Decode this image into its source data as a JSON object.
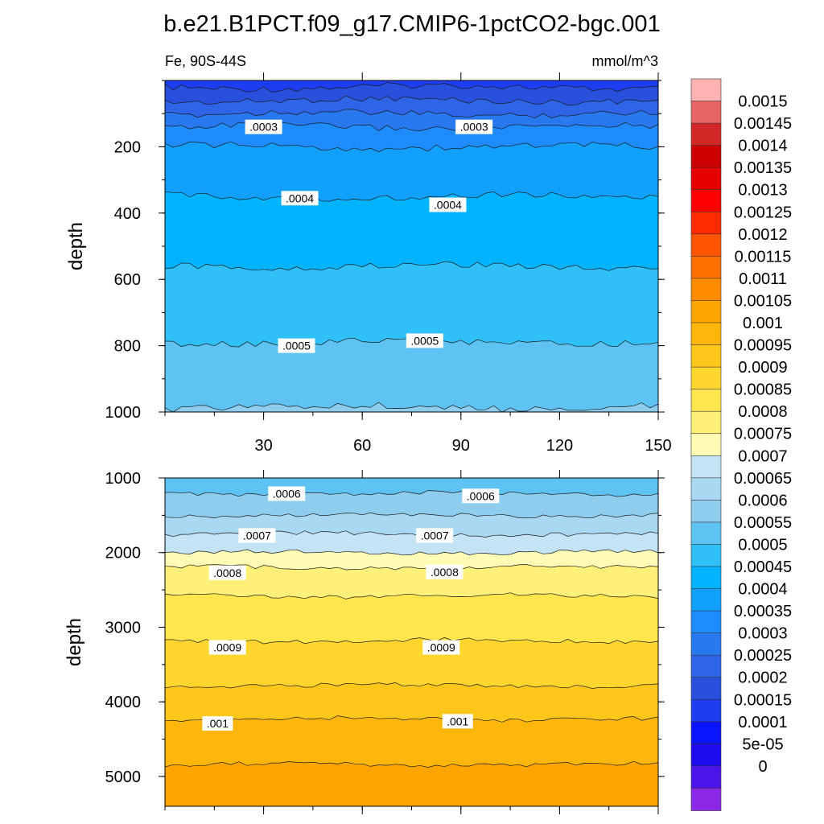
{
  "chart_data": {
    "type": "heatmap",
    "title": "b.e21.B1PCT.f09_g17.CMIP6-1pctCO2-bgc.001",
    "left_string": "Fe, 90S-44S",
    "right_string": "mmol/m^3",
    "panels": [
      {
        "name": "upper",
        "ylabel": "depth",
        "xlim": [
          0,
          150
        ],
        "ylim": [
          0,
          1000
        ],
        "yticks": [
          200,
          400,
          600,
          800,
          1000
        ],
        "ytick_labels": [
          "200",
          "400",
          "600",
          "800",
          "1000"
        ],
        "xticks": [
          30,
          60,
          90,
          120,
          150
        ],
        "xtick_labels": [
          "30",
          "60",
          "90",
          "120",
          "150"
        ],
        "contour_lines": [
          {
            "level": 0.00015,
            "depth": 20
          },
          {
            "level": 0.0002,
            "depth": 60
          },
          {
            "level": 0.00025,
            "depth": 100
          },
          {
            "level": 0.0003,
            "depth": 140
          },
          {
            "level": 0.00035,
            "depth": 200
          },
          {
            "level": 0.0004,
            "depth": 350
          },
          {
            "level": 0.00045,
            "depth": 560
          },
          {
            "level": 0.0005,
            "depth": 790
          },
          {
            "level": 0.00055,
            "depth": 985
          }
        ],
        "contour_labels": [
          {
            "text": ".0003",
            "x": 30,
            "depth": 140
          },
          {
            "text": ".0003",
            "x": 94,
            "depth": 140
          },
          {
            "text": ".0004",
            "x": 41,
            "depth": 355
          },
          {
            "text": ".0004",
            "x": 86,
            "depth": 375
          },
          {
            "text": ".0005",
            "x": 40,
            "depth": 800
          },
          {
            "text": ".0005",
            "x": 79,
            "depth": 785
          }
        ]
      },
      {
        "name": "lower",
        "ylabel": "depth",
        "xlim": [
          0,
          150
        ],
        "ylim": [
          1000,
          5400
        ],
        "yticks": [
          1000,
          2000,
          3000,
          4000,
          5000
        ],
        "ytick_labels": [
          "1000",
          "2000",
          "3000",
          "4000",
          "5000"
        ],
        "contour_lines": [
          {
            "level": 0.00055,
            "depth": 1210
          },
          {
            "level": 0.0006,
            "depth": 1500
          },
          {
            "level": 0.00065,
            "depth": 1750
          },
          {
            "level": 0.0007,
            "depth": 2000
          },
          {
            "level": 0.00075,
            "depth": 2200
          },
          {
            "level": 0.0008,
            "depth": 2580
          },
          {
            "level": 0.00085,
            "depth": 3180
          },
          {
            "level": 0.0009,
            "depth": 3780
          },
          {
            "level": 0.00095,
            "depth": 4230
          },
          {
            "level": 0.001,
            "depth": 4840
          }
        ],
        "contour_labels": [
          {
            "text": ".0006",
            "x": 37,
            "depth": 1210
          },
          {
            "text": ".0006",
            "x": 96,
            "depth": 1240
          },
          {
            "text": ".0007",
            "x": 28,
            "depth": 1770
          },
          {
            "text": ".0007",
            "x": 82,
            "depth": 1770
          },
          {
            "text": ".0008",
            "x": 19,
            "depth": 2270
          },
          {
            "text": ".0008",
            "x": 85,
            "depth": 2260
          },
          {
            "text": ".0009",
            "x": 19,
            "depth": 3270
          },
          {
            "text": ".0009",
            "x": 84,
            "depth": 3270
          },
          {
            "text": ".001",
            "x": 16,
            "depth": 4290
          },
          {
            "text": ".001",
            "x": 89,
            "depth": 4260
          }
        ]
      }
    ],
    "colorbar": {
      "labels": [
        "0.0015",
        "0.00145",
        "0.0014",
        "0.00135",
        "0.0013",
        "0.00125",
        "0.0012",
        "0.00115",
        "0.0011",
        "0.00105",
        "0.001",
        "0.00095",
        "0.0009",
        "0.00085",
        "0.0008",
        "0.00075",
        "0.0007",
        "0.00065",
        "0.0006",
        "0.00055",
        "0.0005",
        "0.00045",
        "0.0004",
        "0.00035",
        "0.0003",
        "0.00025",
        "0.0002",
        "0.00015",
        "0.0001",
        "5e-05",
        "0"
      ],
      "colors_top_to_bottom": [
        "#ffb3b3",
        "#e86464",
        "#d42828",
        "#cc0000",
        "#e60000",
        "#ff0000",
        "#ff2a00",
        "#ff5500",
        "#ff7000",
        "#ff8c00",
        "#ffa500",
        "#ffb60a",
        "#ffc71a",
        "#ffd62e",
        "#ffe64d",
        "#fff07a",
        "#fffcb5",
        "#c4e4f6",
        "#a9d9f2",
        "#8fcdee",
        "#5ec2f2",
        "#2fc0f7",
        "#00b3ff",
        "#12a0ff",
        "#1e8cff",
        "#2878f0",
        "#2e64e8",
        "#2850dc",
        "#1e3cf0",
        "#0a14ff",
        "#1e0aef",
        "#4b14e8",
        "#8c28e6"
      ],
      "colors_note": "level-to-color mapping used for the filled contours"
    }
  }
}
